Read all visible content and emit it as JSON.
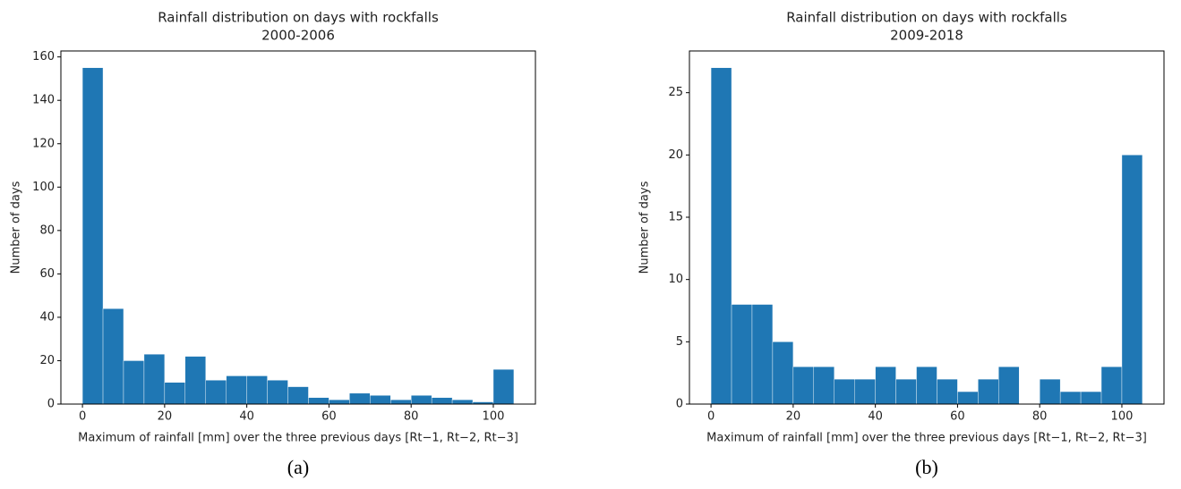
{
  "chart_data": [
    {
      "type": "histogram",
      "title": "Rainfall distribution on days with rockfalls",
      "subtitle": "2000-2006",
      "panel_label": "(a)",
      "x_label": "Maximum of rainfall [mm] over the three previous days [Rt−1, Rt−2, Rt−3]",
      "y_label": "Number of days",
      "bins": [
        0,
        5,
        10,
        15,
        20,
        25,
        30,
        35,
        40,
        45,
        50,
        55,
        60,
        65,
        70,
        75,
        80,
        85,
        90,
        95,
        100,
        105
      ],
      "values": [
        155,
        44,
        20,
        23,
        10,
        22,
        11,
        13,
        13,
        11,
        8,
        3,
        2,
        5,
        4,
        2,
        4,
        3,
        2,
        1,
        16
      ],
      "color": "#1f77b4",
      "xlim": [
        -5.25,
        110.25
      ],
      "ylim": [
        0,
        162.75
      ],
      "xticks": [
        0,
        20,
        40,
        60,
        80,
        100
      ],
      "yticks": [
        0,
        20,
        40,
        60,
        80,
        100,
        120,
        140,
        160
      ]
    },
    {
      "type": "histogram",
      "title": "Rainfall distribution on days with rockfalls",
      "subtitle": "2009-2018",
      "panel_label": "(b)",
      "x_label": "Maximum of rainfall [mm] over the three previous days [Rt−1, Rt−2, Rt−3]",
      "y_label": "Number of days",
      "bins": [
        0,
        5,
        10,
        15,
        20,
        25,
        30,
        35,
        40,
        45,
        50,
        55,
        60,
        65,
        70,
        75,
        80,
        85,
        90,
        95,
        100,
        105
      ],
      "values": [
        27,
        8,
        8,
        5,
        3,
        3,
        2,
        2,
        3,
        2,
        3,
        2,
        1,
        2,
        3,
        0,
        2,
        1,
        1,
        3,
        20
      ],
      "color": "#1f77b4",
      "xlim": [
        -5.25,
        110.25
      ],
      "ylim": [
        0,
        28.35
      ],
      "xticks": [
        0,
        20,
        40,
        60,
        80,
        100
      ],
      "yticks": [
        0,
        5,
        10,
        15,
        20,
        25
      ]
    }
  ]
}
